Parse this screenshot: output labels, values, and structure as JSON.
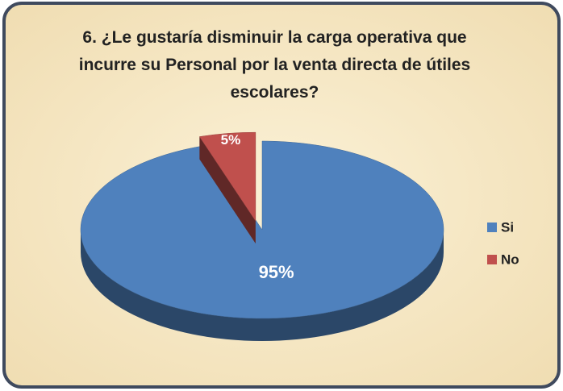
{
  "chart_data": {
    "type": "pie",
    "title": "6. ¿Le gustaría disminuir la carga operativa que incurre su Personal por la venta directa de útiles escolares?",
    "categories": [
      "Si",
      "No"
    ],
    "values": [
      95,
      5
    ],
    "value_labels": [
      "95%",
      "5%"
    ],
    "colors": [
      "#4f81bd",
      "#c0504d"
    ],
    "legend": "right"
  }
}
